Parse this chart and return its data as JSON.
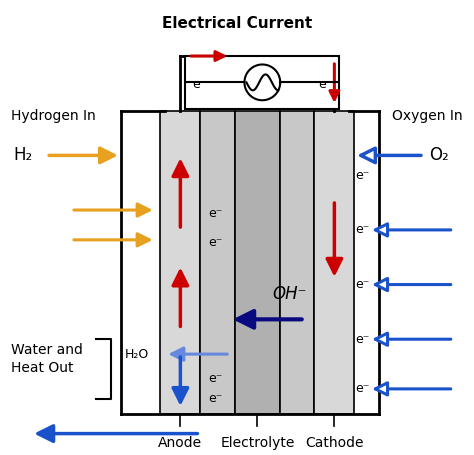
{
  "fig_width": 4.74,
  "fig_height": 4.55,
  "dpi": 100,
  "bg_color": "#ffffff",
  "title": "Electrical Current",
  "label_hydrogen_in": "Hydrogen In",
  "label_oxygen_in": "Oxygen In",
  "label_h2": "H₂",
  "label_o2": "O₂",
  "label_h2o": "H₂O",
  "label_oh": "OH⁻",
  "label_water_heat": "Water and\nHeat Out",
  "label_anode": "Anode",
  "label_electrolyte": "Electrolyte",
  "label_cathode": "Cathode",
  "label_eminus": "e⁻",
  "color_red": "#cc0000",
  "color_orange": "#e8a020",
  "color_blue": "#1a52cc",
  "color_blue_light": "#6688dd",
  "color_dark_navy": "#0a0a80",
  "color_gray_anode": "#d8d8d8",
  "color_gray_elec1": "#c8c8c8",
  "color_gray_elec_center": "#b0b0b0",
  "color_gray_cathode": "#d8d8d8",
  "color_black": "#000000",
  "color_white": "#ffffff"
}
